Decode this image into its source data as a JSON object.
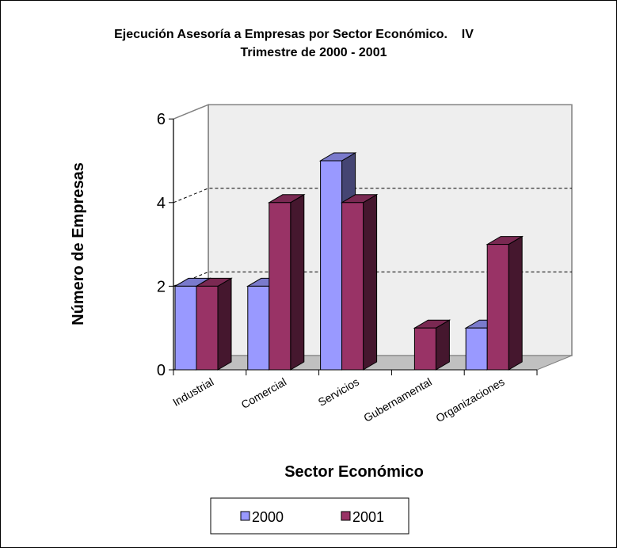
{
  "chart_data": {
    "type": "bar",
    "title_line1": "Ejecución Asesoría a Empresas por Sector Económico.    IV",
    "title_line2": "Trimestre de 2000 - 2001",
    "xlabel": "Sector Económico",
    "ylabel": "Número de Empresas",
    "categories": [
      "Industrial",
      "Comercial",
      "Servicios",
      "Gubernamental",
      "Organizaciones"
    ],
    "series": [
      {
        "name": "2000",
        "values": [
          2,
          2,
          5,
          0,
          1
        ],
        "color": "#9999ff"
      },
      {
        "name": "2001",
        "values": [
          2,
          4,
          4,
          1,
          3
        ],
        "color": "#993366"
      }
    ],
    "ylim": [
      0,
      6
    ],
    "yticks": [
      0,
      2,
      4,
      6
    ],
    "grid": "dashed",
    "legend": "bottom",
    "style": "3d-clustered-column"
  }
}
